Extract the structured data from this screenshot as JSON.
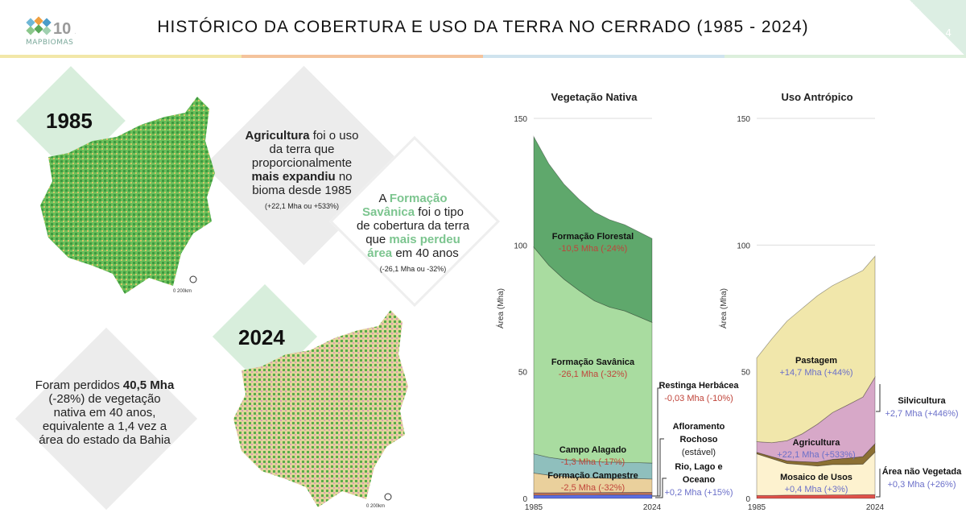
{
  "header": {
    "logo_text": "MAPBIOMAS",
    "logo_badge": "10 ANOS",
    "title": "HISTÓRICO DA COBERTURA E USO DA TERRA NO CERRADO (1985 - 2024)",
    "page_number": "4"
  },
  "maps": [
    {
      "year": "1985",
      "scale": "0    200km"
    },
    {
      "year": "2024",
      "scale": "0    200km"
    }
  ],
  "callouts": {
    "agricultura": {
      "bold1": "Agricultura",
      "t1": " foi o uso da terra que proporcionalmente ",
      "bold2": "mais expandiu",
      "t2": " no bioma desde 1985",
      "note": "(+22,1 Mha ou +533%)"
    },
    "savanica": {
      "t0": "A ",
      "g1": "Formação Savânica",
      "t1": " foi o tipo de cobertura da terra que ",
      "g2": "mais perdeu área",
      "t2": " em 40 anos",
      "note": "(-26,1 Mha ou -32%)"
    },
    "perdidos": {
      "t0": "Foram perdidos ",
      "bold": "40,5 Mha",
      "t1": " (-28%) de vegetação nativa em 40 anos, equivalente a 1,4 vez a área do estado da Bahia"
    }
  },
  "chart_data": [
    {
      "type": "area",
      "stacked": true,
      "title": "Vegetação Nativa",
      "ylabel": "Área (Mha)",
      "ylim": [
        0,
        150
      ],
      "yticks": [
        "0",
        "50",
        "100",
        "150"
      ],
      "xticks": [
        "1985",
        "2024"
      ],
      "x": [
        1985,
        1990,
        1995,
        2000,
        2005,
        2010,
        2015,
        2020,
        2024
      ],
      "series": [
        {
          "name": "Rio, Lago e Oceano",
          "color": "#5b6ee1",
          "values": [
            1.3,
            1.3,
            1.35,
            1.4,
            1.4,
            1.45,
            1.45,
            1.5,
            1.5
          ]
        },
        {
          "name": "Afloramento Rochoso",
          "color": "#f08a5c",
          "values": [
            0.6,
            0.6,
            0.6,
            0.6,
            0.6,
            0.6,
            0.6,
            0.6,
            0.6
          ]
        },
        {
          "name": "Restinga Herbácea",
          "color": "#e7a0a8",
          "values": [
            0.3,
            0.3,
            0.3,
            0.3,
            0.3,
            0.3,
            0.3,
            0.3,
            0.27
          ]
        },
        {
          "name": "Formação Campestre",
          "color": "#ead09c",
          "values": [
            7.8,
            7,
            6.5,
            6,
            5.8,
            5.6,
            5.5,
            5.4,
            5.3
          ]
        },
        {
          "name": "Campo Alagado",
          "color": "#8fbfbd",
          "values": [
            7.6,
            7,
            6.6,
            6.5,
            6.4,
            6.4,
            6.3,
            6.3,
            6.3
          ]
        },
        {
          "name": "Formação Savânica",
          "color": "#a9dca0",
          "values": [
            81.6,
            75.8,
            71.15,
            67.2,
            63.5,
            61.15,
            59.85,
            57.4,
            55.5
          ]
        },
        {
          "name": "Formação Florestal",
          "color": "#5fa86c",
          "values": [
            43.6,
            40,
            37.5,
            36,
            35,
            34.5,
            34,
            33.5,
            33.1
          ]
        }
      ],
      "labels": [
        {
          "name": "Formação Florestal",
          "change": "-10,5 Mha (-24%)"
        },
        {
          "name": "Formação Savânica",
          "change": "-26,1 Mha (-32%)"
        },
        {
          "name": "Campo Alagado",
          "change": "-1,3 Mha (-17%)"
        },
        {
          "name": "Formação Campestre",
          "change": "-2,5 Mha (-32%)"
        },
        {
          "name": "Restinga Herbácea",
          "change": "-0,03 Mha (-10%)"
        },
        {
          "name": "Afloramento Rochoso",
          "change": "(estável)"
        },
        {
          "name": "Rio, Lago e Oceano",
          "change": "+0,2 Mha (+15%)"
        }
      ]
    },
    {
      "type": "area",
      "stacked": true,
      "title": "Uso Antrópico",
      "ylabel": "Área (Mha)",
      "ylim": [
        0,
        150
      ],
      "yticks": [
        "0",
        "50",
        "100",
        "150"
      ],
      "xticks": [
        "1985",
        "2024"
      ],
      "x": [
        1985,
        1990,
        1995,
        2000,
        2005,
        2010,
        2015,
        2020,
        2024
      ],
      "series": [
        {
          "name": "Área não Vegetada",
          "color": "#e0524a",
          "values": [
            1.2,
            1.2,
            1.3,
            1.3,
            1.3,
            1.4,
            1.4,
            1.5,
            1.5
          ]
        },
        {
          "name": "Mosaico de Usos",
          "color": "#fdf2cf",
          "values": [
            16.4,
            14.5,
            12.5,
            12,
            11.5,
            12,
            12,
            12,
            16.8
          ]
        },
        {
          "name": "Silvicultura",
          "color": "#8c7034",
          "values": [
            0.6,
            0.8,
            1.0,
            1.2,
            1.5,
            2.0,
            2.5,
            3.0,
            3.3
          ]
        },
        {
          "name": "Agricultura",
          "color": "#d7a8c8",
          "values": [
            4.2,
            5.5,
            8,
            11,
            15,
            18.5,
            21,
            23.5,
            26.3
          ]
        },
        {
          "name": "Pastagem",
          "color": "#f1e7ab",
          "values": [
            33,
            41,
            47.2,
            49.5,
            50.7,
            50.1,
            50.1,
            50,
            47.7
          ]
        }
      ],
      "labels": [
        {
          "name": "Pastagem",
          "change": "+14,7 Mha (+44%)"
        },
        {
          "name": "Agricultura",
          "change": "+22,1 Mha (+533%)"
        },
        {
          "name": "Mosaico de Usos",
          "change": "+0,4 Mha (+3%)"
        },
        {
          "name": "Silvicultura",
          "change": "+2,7 Mha (+446%)"
        },
        {
          "name": "Área não Vegetada",
          "change": "+0,3 Mha (+26%)"
        }
      ]
    }
  ]
}
